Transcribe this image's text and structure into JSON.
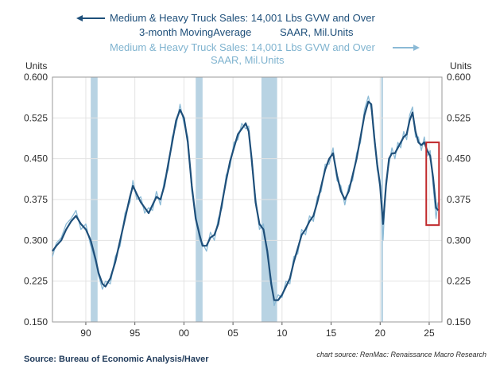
{
  "chart_data": {
    "type": "line",
    "legend": {
      "series_ma": {
        "line1": "Medium & Heavy Truck Sales: 14,001 Lbs GVW and Over",
        "line2a": "3-month MovingAverage",
        "line2b": "SAAR, Mil.Units",
        "arrow": "left"
      },
      "series_raw": {
        "line1": "Medium & Heavy Truck Sales: 14,001 Lbs GVW and Over",
        "line2": "SAAR, Mil.Units",
        "arrow": "right"
      }
    },
    "y_left_title": "Units",
    "y_right_title": "Units",
    "ylim": [
      0.15,
      0.6
    ],
    "yticks": [
      {
        "value": 0.6,
        "label": "0.600"
      },
      {
        "value": 0.525,
        "label": "0.525"
      },
      {
        "value": 0.45,
        "label": "0.450"
      },
      {
        "value": 0.375,
        "label": "0.375"
      },
      {
        "value": 0.3,
        "label": "0.300"
      },
      {
        "value": 0.225,
        "label": "0.225"
      },
      {
        "value": 0.15,
        "label": "0.150"
      }
    ],
    "xlim": [
      1986.6,
      2026.3
    ],
    "xticks": [
      {
        "value": 1990,
        "label": "90"
      },
      {
        "value": 1995,
        "label": "95"
      },
      {
        "value": 2000,
        "label": "00"
      },
      {
        "value": 2005,
        "label": "05"
      },
      {
        "value": 2010,
        "label": "10"
      },
      {
        "value": 2015,
        "label": "15"
      },
      {
        "value": 2020,
        "label": "20"
      },
      {
        "value": 2025,
        "label": "25"
      }
    ],
    "recessions": [
      [
        1990.5,
        1991.2
      ],
      [
        2001.2,
        2001.9
      ],
      [
        2007.9,
        2009.5
      ],
      [
        2020.1,
        2020.3
      ]
    ],
    "highlight_box": {
      "x0": 2024.7,
      "x1": 2026.0,
      "y0": 0.328,
      "y1": 0.48
    },
    "series": [
      {
        "name": "3-month MovingAverage",
        "color": "#1e4f7a",
        "points": [
          [
            1986.6,
            0.28
          ],
          [
            1987.0,
            0.29
          ],
          [
            1987.5,
            0.3
          ],
          [
            1988.0,
            0.32
          ],
          [
            1988.5,
            0.335
          ],
          [
            1989.0,
            0.345
          ],
          [
            1989.5,
            0.33
          ],
          [
            1990.0,
            0.32
          ],
          [
            1990.5,
            0.3
          ],
          [
            1991.0,
            0.265
          ],
          [
            1991.3,
            0.24
          ],
          [
            1991.7,
            0.22
          ],
          [
            1992.0,
            0.215
          ],
          [
            1992.5,
            0.23
          ],
          [
            1993.0,
            0.26
          ],
          [
            1993.5,
            0.3
          ],
          [
            1994.0,
            0.34
          ],
          [
            1994.5,
            0.38
          ],
          [
            1994.8,
            0.4
          ],
          [
            1995.2,
            0.385
          ],
          [
            1995.6,
            0.37
          ],
          [
            1996.0,
            0.36
          ],
          [
            1996.4,
            0.35
          ],
          [
            1996.8,
            0.365
          ],
          [
            1997.2,
            0.38
          ],
          [
            1997.6,
            0.375
          ],
          [
            1998.0,
            0.4
          ],
          [
            1998.4,
            0.44
          ],
          [
            1998.8,
            0.48
          ],
          [
            1999.2,
            0.52
          ],
          [
            1999.6,
            0.54
          ],
          [
            2000.0,
            0.525
          ],
          [
            2000.4,
            0.48
          ],
          [
            2000.8,
            0.4
          ],
          [
            2001.2,
            0.34
          ],
          [
            2001.6,
            0.31
          ],
          [
            2001.9,
            0.29
          ],
          [
            2002.3,
            0.29
          ],
          [
            2002.7,
            0.305
          ],
          [
            2003.1,
            0.31
          ],
          [
            2003.5,
            0.33
          ],
          [
            2003.9,
            0.37
          ],
          [
            2004.3,
            0.41
          ],
          [
            2004.7,
            0.445
          ],
          [
            2005.1,
            0.47
          ],
          [
            2005.5,
            0.495
          ],
          [
            2005.9,
            0.505
          ],
          [
            2006.3,
            0.515
          ],
          [
            2006.6,
            0.5
          ],
          [
            2006.9,
            0.45
          ],
          [
            2007.3,
            0.37
          ],
          [
            2007.7,
            0.33
          ],
          [
            2008.1,
            0.32
          ],
          [
            2008.5,
            0.28
          ],
          [
            2008.9,
            0.22
          ],
          [
            2009.2,
            0.19
          ],
          [
            2009.6,
            0.19
          ],
          [
            2010.0,
            0.2
          ],
          [
            2010.4,
            0.215
          ],
          [
            2010.8,
            0.23
          ],
          [
            2011.2,
            0.26
          ],
          [
            2011.6,
            0.285
          ],
          [
            2012.0,
            0.31
          ],
          [
            2012.4,
            0.32
          ],
          [
            2012.8,
            0.335
          ],
          [
            2013.2,
            0.345
          ],
          [
            2013.6,
            0.37
          ],
          [
            2014.0,
            0.4
          ],
          [
            2014.4,
            0.43
          ],
          [
            2014.8,
            0.45
          ],
          [
            2015.2,
            0.46
          ],
          [
            2015.6,
            0.42
          ],
          [
            2016.0,
            0.39
          ],
          [
            2016.4,
            0.375
          ],
          [
            2016.8,
            0.39
          ],
          [
            2017.2,
            0.42
          ],
          [
            2017.6,
            0.45
          ],
          [
            2018.0,
            0.49
          ],
          [
            2018.4,
            0.53
          ],
          [
            2018.8,
            0.555
          ],
          [
            2019.1,
            0.55
          ],
          [
            2019.4,
            0.49
          ],
          [
            2019.7,
            0.44
          ],
          [
            2020.0,
            0.4
          ],
          [
            2020.3,
            0.33
          ],
          [
            2020.6,
            0.4
          ],
          [
            2020.9,
            0.45
          ],
          [
            2021.2,
            0.46
          ],
          [
            2021.5,
            0.46
          ],
          [
            2021.8,
            0.47
          ],
          [
            2022.1,
            0.48
          ],
          [
            2022.4,
            0.49
          ],
          [
            2022.7,
            0.495
          ],
          [
            2023.0,
            0.52
          ],
          [
            2023.3,
            0.535
          ],
          [
            2023.6,
            0.5
          ],
          [
            2023.9,
            0.48
          ],
          [
            2024.2,
            0.475
          ],
          [
            2024.5,
            0.48
          ],
          [
            2024.8,
            0.465
          ],
          [
            2025.1,
            0.455
          ],
          [
            2025.4,
            0.415
          ],
          [
            2025.7,
            0.36
          ],
          [
            2025.9,
            0.355
          ]
        ]
      },
      {
        "name": "Medium & Heavy Truck Sales SAAR",
        "color": "#8bbad6",
        "points": [
          [
            1986.6,
            0.27
          ],
          [
            1987.0,
            0.295
          ],
          [
            1987.5,
            0.305
          ],
          [
            1988.0,
            0.33
          ],
          [
            1988.5,
            0.34
          ],
          [
            1989.0,
            0.355
          ],
          [
            1989.5,
            0.32
          ],
          [
            1990.0,
            0.33
          ],
          [
            1990.5,
            0.29
          ],
          [
            1991.0,
            0.26
          ],
          [
            1991.3,
            0.235
          ],
          [
            1991.7,
            0.21
          ],
          [
            1992.0,
            0.225
          ],
          [
            1992.5,
            0.22
          ],
          [
            1993.0,
            0.27
          ],
          [
            1993.5,
            0.29
          ],
          [
            1994.0,
            0.35
          ],
          [
            1994.5,
            0.37
          ],
          [
            1994.8,
            0.41
          ],
          [
            1995.2,
            0.375
          ],
          [
            1995.6,
            0.38
          ],
          [
            1996.0,
            0.35
          ],
          [
            1996.4,
            0.36
          ],
          [
            1996.8,
            0.355
          ],
          [
            1997.2,
            0.39
          ],
          [
            1997.6,
            0.365
          ],
          [
            1998.0,
            0.41
          ],
          [
            1998.4,
            0.43
          ],
          [
            1998.8,
            0.49
          ],
          [
            1999.2,
            0.51
          ],
          [
            1999.6,
            0.55
          ],
          [
            2000.0,
            0.515
          ],
          [
            2000.4,
            0.49
          ],
          [
            2000.8,
            0.39
          ],
          [
            2001.2,
            0.35
          ],
          [
            2001.6,
            0.3
          ],
          [
            2001.9,
            0.295
          ],
          [
            2002.3,
            0.28
          ],
          [
            2002.7,
            0.315
          ],
          [
            2003.1,
            0.3
          ],
          [
            2003.5,
            0.34
          ],
          [
            2003.9,
            0.36
          ],
          [
            2004.3,
            0.42
          ],
          [
            2004.7,
            0.435
          ],
          [
            2005.1,
            0.48
          ],
          [
            2005.5,
            0.485
          ],
          [
            2005.9,
            0.515
          ],
          [
            2006.3,
            0.505
          ],
          [
            2006.6,
            0.51
          ],
          [
            2006.9,
            0.44
          ],
          [
            2007.3,
            0.38
          ],
          [
            2007.7,
            0.32
          ],
          [
            2008.1,
            0.33
          ],
          [
            2008.5,
            0.27
          ],
          [
            2008.9,
            0.23
          ],
          [
            2009.2,
            0.18
          ],
          [
            2009.6,
            0.2
          ],
          [
            2010.0,
            0.195
          ],
          [
            2010.4,
            0.225
          ],
          [
            2010.8,
            0.22
          ],
          [
            2011.2,
            0.27
          ],
          [
            2011.6,
            0.275
          ],
          [
            2012.0,
            0.32
          ],
          [
            2012.4,
            0.31
          ],
          [
            2012.8,
            0.345
          ],
          [
            2013.2,
            0.335
          ],
          [
            2013.6,
            0.38
          ],
          [
            2014.0,
            0.39
          ],
          [
            2014.4,
            0.44
          ],
          [
            2014.8,
            0.44
          ],
          [
            2015.2,
            0.47
          ],
          [
            2015.6,
            0.41
          ],
          [
            2016.0,
            0.4
          ],
          [
            2016.4,
            0.365
          ],
          [
            2016.8,
            0.4
          ],
          [
            2017.2,
            0.41
          ],
          [
            2017.6,
            0.46
          ],
          [
            2018.0,
            0.48
          ],
          [
            2018.4,
            0.54
          ],
          [
            2018.8,
            0.565
          ],
          [
            2019.1,
            0.54
          ],
          [
            2019.4,
            0.5
          ],
          [
            2019.7,
            0.43
          ],
          [
            2020.0,
            0.41
          ],
          [
            2020.3,
            0.3
          ],
          [
            2020.6,
            0.41
          ],
          [
            2020.9,
            0.44
          ],
          [
            2021.2,
            0.47
          ],
          [
            2021.5,
            0.45
          ],
          [
            2021.8,
            0.48
          ],
          [
            2022.1,
            0.47
          ],
          [
            2022.4,
            0.5
          ],
          [
            2022.7,
            0.485
          ],
          [
            2023.0,
            0.53
          ],
          [
            2023.3,
            0.545
          ],
          [
            2023.6,
            0.49
          ],
          [
            2023.9,
            0.49
          ],
          [
            2024.2,
            0.465
          ],
          [
            2024.5,
            0.49
          ],
          [
            2024.8,
            0.455
          ],
          [
            2025.1,
            0.465
          ],
          [
            2025.4,
            0.4
          ],
          [
            2025.7,
            0.34
          ],
          [
            2025.9,
            0.37
          ]
        ]
      }
    ]
  },
  "footer": {
    "source": "Source:  Bureau of Economic Analysis/Haver",
    "chart_source": "chart source: RenMac: Renaissance Macro Research"
  },
  "colors": {
    "ma_line": "#1e4f7a",
    "raw_line": "#8bbad6",
    "recession": "#b8d3e3",
    "grid": "#e3e3e3",
    "highlight": "#c0282b"
  }
}
